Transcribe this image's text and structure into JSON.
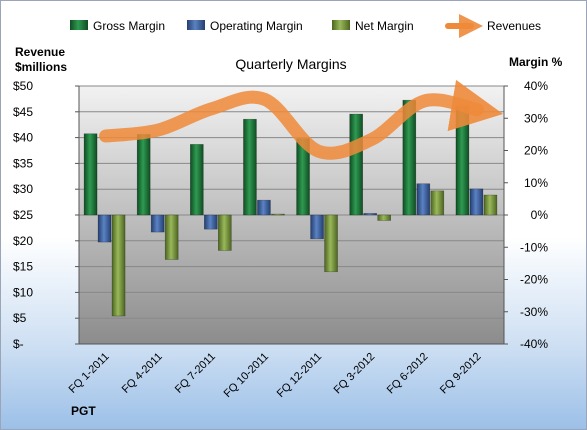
{
  "chart_data": {
    "type": "bar",
    "title": "Quarterly Margins",
    "company": "PGT",
    "y_left_label_line1": "Revenue",
    "y_left_label_line2": "$millions",
    "y_right_label": "Margin %",
    "y_left_range": [
      0,
      50
    ],
    "y_right_range": [
      -40,
      40
    ],
    "y_left_ticks": [
      "$50",
      "$45",
      "$40",
      "$35",
      "$30",
      "$25",
      "$20",
      "$15",
      "$10",
      "$5",
      "$-"
    ],
    "y_left_tick_values": [
      50,
      45,
      40,
      35,
      30,
      25,
      20,
      15,
      10,
      5,
      0
    ],
    "y_right_ticks": [
      "40%",
      "30%",
      "20%",
      "10%",
      "0%",
      "-10%",
      "-20%",
      "-30%",
      "-40%"
    ],
    "y_right_tick_values": [
      40,
      30,
      20,
      10,
      0,
      -10,
      -20,
      -30,
      -40
    ],
    "categories": [
      "FQ 1-2011",
      "FQ 4-2011",
      "FQ 7-2011",
      "FQ 10-2011",
      "FQ 12-2011",
      "FQ 3-2012",
      "FQ 6-2012",
      "FQ 9-2012"
    ],
    "legend_position": "top",
    "series": [
      {
        "name": "Gross Margin",
        "axis": "right",
        "color": "#1e7a3c",
        "values": [
          25.2,
          25.0,
          21.9,
          29.7,
          23.7,
          31.3,
          35.6,
          33.9
        ]
      },
      {
        "name": "Operating Margin",
        "axis": "right",
        "color": "#3f67a8",
        "values": [
          -8.4,
          -5.3,
          -4.4,
          4.6,
          -7.4,
          0.5,
          9.7,
          8.1
        ]
      },
      {
        "name": "Net Margin",
        "axis": "right",
        "color": "#7a9a3a",
        "values": [
          -31.3,
          -13.8,
          -11.0,
          0.3,
          -17.6,
          -1.7,
          7.5,
          6.2
        ]
      },
      {
        "name": "Revenues",
        "axis": "left",
        "color": "#ee8a3a",
        "type": "line",
        "values": [
          40.3,
          41.5,
          45.6,
          47.4,
          37.4,
          39.6,
          47.1,
          45.4
        ]
      }
    ]
  }
}
